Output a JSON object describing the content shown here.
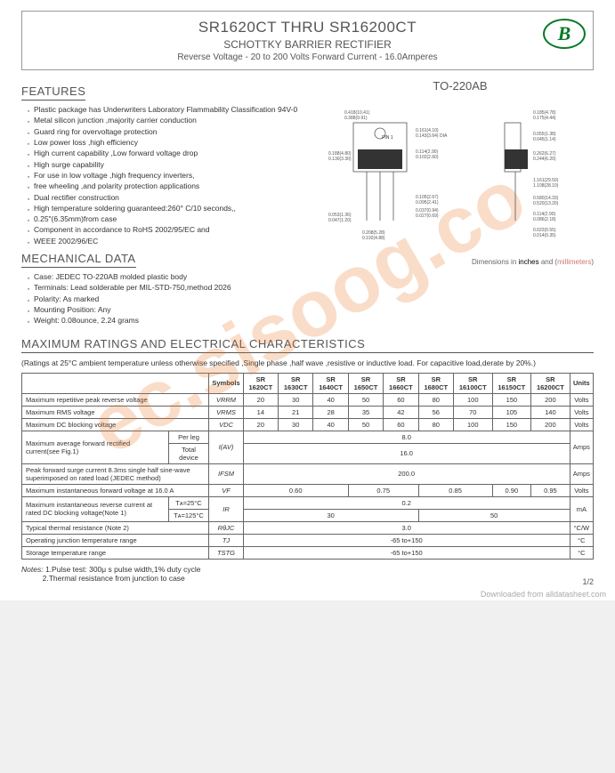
{
  "header": {
    "title": "SR1620CT THRU SR16200CT",
    "subtitle": "SCHOTTKY BARRIER RECTIFIER",
    "specline": "Reverse Voltage - 20 to 200 Volts  Forward Current - 16.0Amperes",
    "logo_letter": "B",
    "logo_color": "#0a7a2a"
  },
  "watermark_text": "ec.sisoog.co",
  "sections": {
    "features_title": "FEATURES",
    "mechanical_title": "MECHANICAL DATA",
    "ratings_title": "MAXIMUM RATINGS AND ELECTRICAL CHARACTERISTICS"
  },
  "features": [
    "Plastic package has Underwriters Laboratory Flammability Classification 94V-0",
    "Metal silicon junction ,majority carrier conduction",
    "Guard ring for overvoltage protection",
    "Low power loss ,high efficiency",
    "High current capability ,Low forward voltage drop",
    "High surge capability",
    "For use in low voltage ,high frequency inverters,",
    "free wheeling ,and polarity protection applications",
    "Dual rectifier construction",
    "High temperature soldering guaranteed:260° C/10 seconds,,",
    "0.25\"(6.35mm)from case",
    "Component in accordance to RoHS 2002/95/EC and",
    "WEEE 2002/96/EC"
  ],
  "mechanical": [
    "Case: JEDEC TO-220AB  molded plastic body",
    "Terminals: Lead solderable per MIL-STD-750,method 2026",
    "Polarity: As marked",
    "Mounting Position: Any",
    "Weight: 0.08ounce, 2.24 grams"
  ],
  "package": {
    "title": "TO-220AB",
    "chip_label": "SR1660CT",
    "dim_note_prefix": "Dimensions in ",
    "dim_note_inch": "inches",
    "dim_note_mid": " and (",
    "dim_note_mm": "millimeters",
    "dim_note_suffix": ")",
    "dimensions_inch_mm": [
      {
        "in": "0.418(10.41)",
        "mm": "0.388(9.91)"
      },
      {
        "in": "0.161(4.10)",
        "mm": "0.143(3.64)"
      },
      {
        "in": "0.185(4.78)",
        "mm": "0.175(4.44)"
      },
      {
        "in": "0.114(2.90)",
        "mm": "0.102(2.60)"
      },
      {
        "in": "0.055(1.38)",
        "mm": "0.045(1.14)"
      },
      {
        "in": "0.262(6.27)",
        "mm": "0.244(6.20)"
      },
      {
        "in": "0.188(4.80)",
        "mm": "0.130(3.30)"
      },
      {
        "in": "1.161(29.50)",
        "mm": "1.108(28.10)"
      },
      {
        "in": "0.580(14.33)",
        "mm": "0.520(13.20)"
      },
      {
        "in": "0.114(2.90)",
        "mm": "0.086(2.18)"
      },
      {
        "in": "0.053(1.36)",
        "mm": "0.047(1.20)"
      },
      {
        "in": "0.037(0.94)",
        "mm": "0.027(0.69)"
      },
      {
        "in": "0.105(2.67)",
        "mm": "0.095(2.41)"
      },
      {
        "in": "0.208(5.28)",
        "mm": "0.192(4.88)"
      },
      {
        "in": "0.022(0.55)",
        "mm": "0.014(0.35)"
      },
      {
        "in": "DIA",
        "mm": ""
      }
    ]
  },
  "ratings_note": "(Ratings at 25°C ambient temperature unless otherwise specified ,Single phase ,half wave ,resistive or inductive load. For capacitive load,derate by 20%.)",
  "ratings_table": {
    "col_param": "",
    "col_symbols": "Symbols",
    "columns": [
      "SR 1620CT",
      "SR 1630CT",
      "SR 1640CT",
      "SR 1650CT",
      "SR 1660CT",
      "SR 1680CT",
      "SR 16100CT",
      "SR 16150CT",
      "SR 16200CT"
    ],
    "col_units": "Units",
    "rows": [
      {
        "param": "Maximum repetitive peak reverse voltage",
        "sym": "VRRM",
        "vals": [
          "20",
          "30",
          "40",
          "50",
          "60",
          "80",
          "100",
          "150",
          "200"
        ],
        "units": "Volts"
      },
      {
        "param": "Maximum RMS voltage",
        "sym": "VRMS",
        "vals": [
          "14",
          "21",
          "28",
          "35",
          "42",
          "56",
          "70",
          "105",
          "140"
        ],
        "units": "Volts"
      },
      {
        "param": "Maximum DC blocking voltage",
        "sym": "VDC",
        "vals": [
          "20",
          "30",
          "40",
          "50",
          "60",
          "80",
          "100",
          "150",
          "200"
        ],
        "units": "Volts"
      }
    ],
    "iav_param": "Maximum average forward rectified current(see Fig.1)",
    "iav_sub1": "Per leg",
    "iav_sub2": "Total device",
    "iav_sym": "I(AV)",
    "iav_val1": "8.0",
    "iav_val2": "16.0",
    "iav_units": "Amps",
    "ifsm_param": "Peak forward surge current 8.3ms single half sine-wave superimposed on rated load (JEDEC method)",
    "ifsm_sym": "IFSM",
    "ifsm_val": "200.0",
    "ifsm_units": "Amps",
    "vf_param": "Maximum instantaneous forward voltage at 16.0 A",
    "vf_sym": "VF",
    "vf_vals": [
      "0.60",
      "0.75",
      "0.85",
      "0.90",
      "0.95"
    ],
    "vf_units": "Volts",
    "ir_param": "Maximum instantaneous reverse current at rated DC blocking voltage(Note 1)",
    "ir_sub1": "Tᴀ=25°C",
    "ir_sub2": "Tᴀ=125°C",
    "ir_sym": "IR",
    "ir_val1": "0.2",
    "ir_val2a": "30",
    "ir_val2b": "50",
    "ir_units": "mA",
    "rth_param": "Typical thermal resistance (Note 2)",
    "rth_sym": "RθJC",
    "rth_val": "3.0",
    "rth_units": "°C/W",
    "tj_param": "Operating junction temperature range",
    "tj_sym": "TJ",
    "tj_val": "-65 to+150",
    "tj_units": "°C",
    "tstg_param": "Storage temperature range",
    "tstg_sym": "TSTG",
    "tstg_val": "-65 to+150",
    "tstg_units": "°C"
  },
  "notes": {
    "label": "Notes:",
    "n1": "1.Pulse test: 300μ s pulse width,1% duty cycle",
    "n2": "2.Thermal resistance from junction to case"
  },
  "pagenum": "1/2",
  "download": "Downloaded from alldatasheet.com"
}
